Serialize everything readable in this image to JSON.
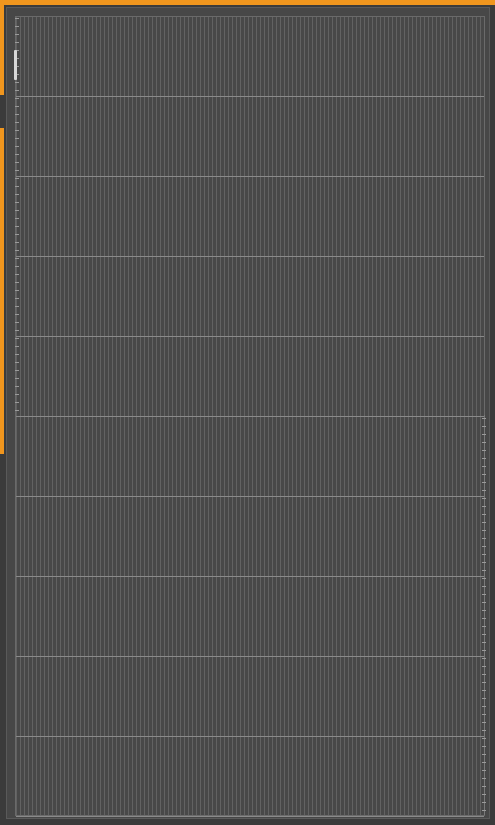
{
  "theme": {
    "accent": "#f0961e",
    "background": "#3b3b3b",
    "panel": "#474747",
    "grid_line": "#8a8a8a"
  },
  "grid": {
    "bands": 10
  },
  "icons": {
    "scroll_handle": "scroll-handle"
  }
}
